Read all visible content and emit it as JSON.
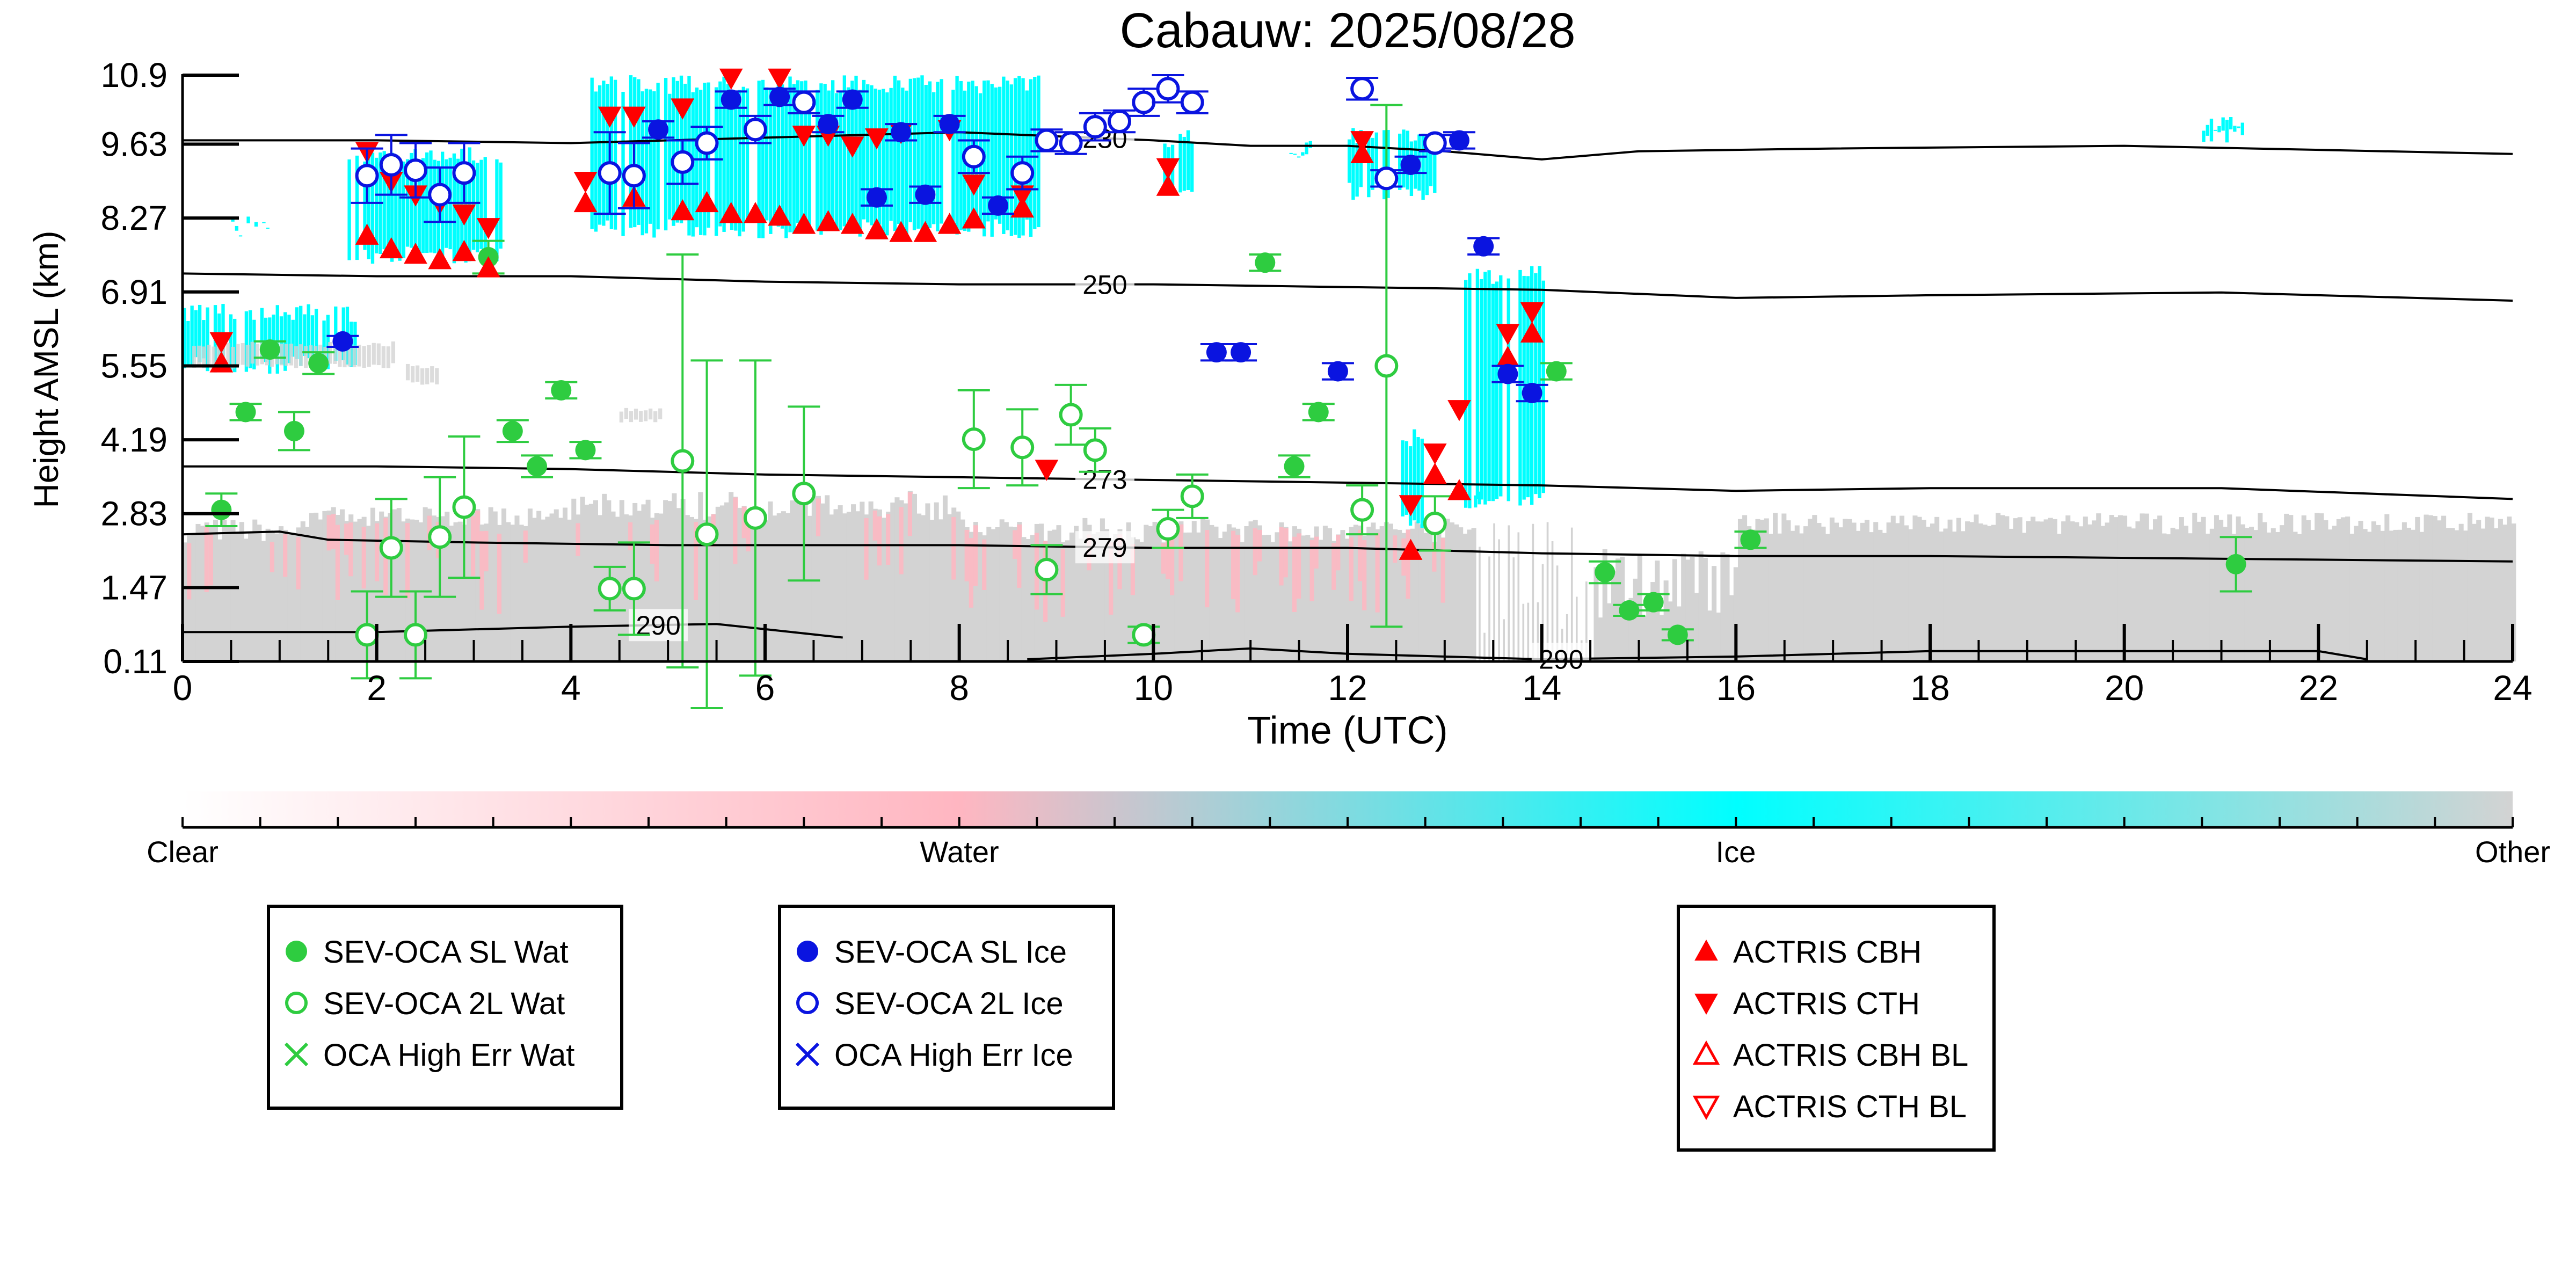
{
  "chart_data": {
    "type": "scatter",
    "title": "Cabauw: 2025/08/28",
    "xlabel": "Time (UTC)",
    "ylabel": "Height AMSL (km)",
    "xlim": [
      0,
      24
    ],
    "ylim": [
      0.11,
      10.9
    ],
    "xticks": [
      "0",
      "2",
      "4",
      "6",
      "8",
      "10",
      "12",
      "14",
      "16",
      "18",
      "20",
      "22",
      "24"
    ],
    "yticks": [
      "0.11",
      "1.47",
      "2.83",
      "4.19",
      "5.55",
      "6.91",
      "8.27",
      "9.63",
      "10.9"
    ],
    "grid": false,
    "colors": {
      "clear": "#ffffff",
      "water": "#ffb6c1",
      "ice": "#00ffff",
      "other": "#d3d3d3",
      "sev_wat": "#2ecc40",
      "sev_ice": "#0a14e0",
      "actris": "#ff0000",
      "contour": "#000000"
    },
    "colorbar": {
      "labels": [
        "Clear",
        "Water",
        "Ice",
        "Other"
      ]
    },
    "legends": [
      {
        "placement": "bottom-left",
        "entries": [
          {
            "label": "SEV-OCA SL Wat",
            "marker": "filled-circle",
            "color": "#2ecc40"
          },
          {
            "label": "SEV-OCA 2L Wat",
            "marker": "open-circle",
            "color": "#2ecc40"
          },
          {
            "label": "OCA High Err Wat",
            "marker": "x",
            "color": "#2ecc40"
          }
        ]
      },
      {
        "placement": "bottom-center-left",
        "entries": [
          {
            "label": "SEV-OCA SL Ice",
            "marker": "filled-circle",
            "color": "#0a14e0"
          },
          {
            "label": "SEV-OCA 2L Ice",
            "marker": "open-circle",
            "color": "#0a14e0"
          },
          {
            "label": "OCA High Err Ice",
            "marker": "x",
            "color": "#0a14e0"
          }
        ]
      },
      {
        "placement": "bottom-center-right",
        "entries": [
          {
            "label": "ACTRIS CBH",
            "marker": "triangle-up-filled",
            "color": "#ff0000"
          },
          {
            "label": "ACTRIS CTH",
            "marker": "triangle-down-filled",
            "color": "#ff0000"
          },
          {
            "label": "ACTRIS CBH BL",
            "marker": "triangle-up-open",
            "color": "#ff0000"
          },
          {
            "label": "ACTRIS CTH BL",
            "marker": "triangle-down-open",
            "color": "#ff0000"
          }
        ]
      }
    ],
    "isotherms": [
      {
        "label": "230",
        "label_x": 9.5,
        "points": [
          [
            0,
            9.7
          ],
          [
            2,
            9.7
          ],
          [
            4,
            9.65
          ],
          [
            6,
            9.75
          ],
          [
            8,
            9.85
          ],
          [
            10,
            9.7
          ],
          [
            11,
            9.6
          ],
          [
            12,
            9.6
          ],
          [
            13,
            9.5
          ],
          [
            14,
            9.35
          ],
          [
            15,
            9.5
          ],
          [
            17,
            9.55
          ],
          [
            20,
            9.6
          ],
          [
            24,
            9.45
          ]
        ]
      },
      {
        "label": "250",
        "label_x": 9.5,
        "points": [
          [
            0,
            7.25
          ],
          [
            2,
            7.2
          ],
          [
            4,
            7.2
          ],
          [
            6,
            7.1
          ],
          [
            8,
            7.05
          ],
          [
            10,
            7.05
          ],
          [
            12,
            7.0
          ],
          [
            14,
            6.95
          ],
          [
            16,
            6.8
          ],
          [
            18,
            6.85
          ],
          [
            21,
            6.9
          ],
          [
            24,
            6.75
          ]
        ]
      },
      {
        "label": "273",
        "label_x": 9.5,
        "points": [
          [
            0,
            3.7
          ],
          [
            2,
            3.7
          ],
          [
            4,
            3.65
          ],
          [
            6,
            3.55
          ],
          [
            8,
            3.5
          ],
          [
            10,
            3.45
          ],
          [
            12,
            3.4
          ],
          [
            14,
            3.35
          ],
          [
            16,
            3.25
          ],
          [
            18,
            3.3
          ],
          [
            21,
            3.3
          ],
          [
            24,
            3.1
          ]
        ]
      },
      {
        "label": "279",
        "label_x": 9.5,
        "points": [
          [
            0,
            2.45
          ],
          [
            1,
            2.5
          ],
          [
            1.5,
            2.35
          ],
          [
            3,
            2.3
          ],
          [
            5,
            2.25
          ],
          [
            8,
            2.25
          ],
          [
            10,
            2.2
          ],
          [
            12,
            2.2
          ],
          [
            14,
            2.1
          ],
          [
            16,
            2.05
          ],
          [
            18,
            2.05
          ],
          [
            21,
            2.0
          ],
          [
            24,
            1.95
          ]
        ]
      },
      {
        "label": "290",
        "label_x": 4.9,
        "points": [
          [
            0,
            0.65
          ],
          [
            2,
            0.65
          ],
          [
            4,
            0.75
          ],
          [
            5.5,
            0.8
          ],
          [
            6.8,
            0.55
          ]
        ]
      },
      {
        "label": "290",
        "label_x": 14.2,
        "points": [
          [
            8.7,
            0.15
          ],
          [
            10,
            0.25
          ],
          [
            11,
            0.35
          ],
          [
            12,
            0.25
          ],
          [
            13,
            0.2
          ],
          [
            14,
            0.15
          ],
          [
            16,
            0.2
          ],
          [
            18,
            0.3
          ],
          [
            20,
            0.3
          ],
          [
            22,
            0.3
          ],
          [
            22.5,
            0.15
          ]
        ]
      }
    ],
    "sev_sl_wat": [
      {
        "x": 0.4,
        "y": 2.9,
        "err": 0.3
      },
      {
        "x": 0.65,
        "y": 4.7,
        "err": 0.15
      },
      {
        "x": 0.9,
        "y": 5.85,
        "err": 0.15
      },
      {
        "x": 1.15,
        "y": 4.35,
        "err": 0.35
      },
      {
        "x": 1.4,
        "y": 5.6,
        "err": 0.2
      },
      {
        "x": 3.15,
        "y": 7.55,
        "err": 0.3
      },
      {
        "x": 3.4,
        "y": 4.35,
        "err": 0.2
      },
      {
        "x": 3.65,
        "y": 3.7,
        "err": 0.2
      },
      {
        "x": 3.9,
        "y": 5.1,
        "err": 0.15
      },
      {
        "x": 4.15,
        "y": 4.0,
        "err": 0.15
      },
      {
        "x": 11.15,
        "y": 7.45,
        "err": 0.15
      },
      {
        "x": 11.45,
        "y": 3.7,
        "err": 0.2
      },
      {
        "x": 11.7,
        "y": 4.7,
        "err": 0.15
      },
      {
        "x": 14.15,
        "y": 5.45,
        "err": 0.15
      },
      {
        "x": 14.65,
        "y": 1.75,
        "err": 0.2
      },
      {
        "x": 14.9,
        "y": 1.05,
        "err": 0.1
      },
      {
        "x": 15.15,
        "y": 1.2,
        "err": 0.15
      },
      {
        "x": 15.4,
        "y": 0.6,
        "err": 0.1
      },
      {
        "x": 16.15,
        "y": 2.35,
        "err": 0.15
      },
      {
        "x": 21.15,
        "y": 1.9,
        "err": 0.5
      }
    ],
    "sev_2l_wat": [
      {
        "x": 1.9,
        "y": 0.6,
        "err": 0.8
      },
      {
        "x": 2.15,
        "y": 2.2,
        "err": 0.9
      },
      {
        "x": 2.4,
        "y": 0.6,
        "err": 0.8
      },
      {
        "x": 2.65,
        "y": 2.4,
        "err": 1.1
      },
      {
        "x": 2.9,
        "y": 2.95,
        "err": 1.3
      },
      {
        "x": 4.4,
        "y": 1.45,
        "err": 0.4
      },
      {
        "x": 4.65,
        "y": 1.45,
        "err": 0.85
      },
      {
        "x": 5.15,
        "y": 3.8,
        "err": 3.8
      },
      {
        "x": 5.4,
        "y": 2.45,
        "err": 3.2
      },
      {
        "x": 5.9,
        "y": 2.75,
        "err": 2.9
      },
      {
        "x": 6.4,
        "y": 3.2,
        "err": 1.6
      },
      {
        "x": 8.15,
        "y": 4.2,
        "err": 0.9
      },
      {
        "x": 8.65,
        "y": 4.05,
        "err": 0.7
      },
      {
        "x": 8.9,
        "y": 1.8,
        "err": 0.45
      },
      {
        "x": 9.15,
        "y": 4.65,
        "err": 0.55
      },
      {
        "x": 9.4,
        "y": 4.0,
        "err": 0.4
      },
      {
        "x": 9.9,
        "y": 0.6,
        "err": 0.15
      },
      {
        "x": 10.15,
        "y": 2.55,
        "err": 0.35
      },
      {
        "x": 10.4,
        "y": 3.15,
        "err": 0.4
      },
      {
        "x": 12.15,
        "y": 2.9,
        "err": 0.45
      },
      {
        "x": 12.4,
        "y": 5.55,
        "err": 4.8
      },
      {
        "x": 12.9,
        "y": 2.65,
        "err": 0.5
      }
    ],
    "sev_sl_ice": [
      {
        "x": 1.65,
        "y": 6.0,
        "err": 0.1
      },
      {
        "x": 4.9,
        "y": 9.9,
        "err": 0.15
      },
      {
        "x": 5.65,
        "y": 10.45,
        "err": 0.15
      },
      {
        "x": 6.15,
        "y": 10.5,
        "err": 0.15
      },
      {
        "x": 6.65,
        "y": 10.0,
        "err": 0.15
      },
      {
        "x": 6.9,
        "y": 10.45,
        "err": 0.15
      },
      {
        "x": 7.15,
        "y": 8.65,
        "err": 0.15
      },
      {
        "x": 7.4,
        "y": 9.85,
        "err": 0.15
      },
      {
        "x": 7.65,
        "y": 8.7,
        "err": 0.15
      },
      {
        "x": 7.9,
        "y": 10.0,
        "err": 0.15
      },
      {
        "x": 8.4,
        "y": 8.5,
        "err": 0.15
      },
      {
        "x": 10.65,
        "y": 5.8,
        "err": 0.15
      },
      {
        "x": 10.9,
        "y": 5.8,
        "err": 0.15
      },
      {
        "x": 11.9,
        "y": 5.45,
        "err": 0.15
      },
      {
        "x": 12.65,
        "y": 9.25,
        "err": 0.15
      },
      {
        "x": 13.15,
        "y": 9.7,
        "err": 0.15
      },
      {
        "x": 13.4,
        "y": 7.75,
        "err": 0.15
      },
      {
        "x": 13.65,
        "y": 5.4,
        "err": 0.15
      },
      {
        "x": 13.9,
        "y": 5.05,
        "err": 0.15
      }
    ],
    "sev_2l_ice": [
      {
        "x": 1.9,
        "y": 9.05,
        "err": 0.5
      },
      {
        "x": 2.15,
        "y": 9.25,
        "err": 0.55
      },
      {
        "x": 2.4,
        "y": 9.15,
        "err": 0.5
      },
      {
        "x": 2.65,
        "y": 8.7,
        "err": 0.5
      },
      {
        "x": 2.9,
        "y": 9.1,
        "err": 0.55
      },
      {
        "x": 4.4,
        "y": 9.1,
        "err": 0.75
      },
      {
        "x": 4.65,
        "y": 9.05,
        "err": 0.6
      },
      {
        "x": 5.15,
        "y": 9.3,
        "err": 0.4
      },
      {
        "x": 5.4,
        "y": 9.65,
        "err": 0.3
      },
      {
        "x": 5.9,
        "y": 9.9,
        "err": 0.25
      },
      {
        "x": 6.4,
        "y": 10.4,
        "err": 0.2
      },
      {
        "x": 8.15,
        "y": 9.4,
        "err": 0.3
      },
      {
        "x": 8.65,
        "y": 9.1,
        "err": 0.3
      },
      {
        "x": 8.9,
        "y": 9.7,
        "err": 0.2
      },
      {
        "x": 9.15,
        "y": 9.65,
        "err": 0.2
      },
      {
        "x": 9.4,
        "y": 9.95,
        "err": 0.25
      },
      {
        "x": 9.65,
        "y": 10.05,
        "err": 0.2
      },
      {
        "x": 9.9,
        "y": 10.4,
        "err": 0.25
      },
      {
        "x": 10.15,
        "y": 10.65,
        "err": 0.25
      },
      {
        "x": 10.4,
        "y": 10.4,
        "err": 0.2
      },
      {
        "x": 12.15,
        "y": 10.65,
        "err": 0.2
      },
      {
        "x": 12.4,
        "y": 9.0,
        "err": 0.15
      },
      {
        "x": 12.9,
        "y": 9.65,
        "err": 0.15
      }
    ],
    "actris_cbh": [
      {
        "x": 0.4,
        "y": 5.6
      },
      {
        "x": 1.9,
        "y": 7.95
      },
      {
        "x": 2.15,
        "y": 7.7
      },
      {
        "x": 2.4,
        "y": 7.6
      },
      {
        "x": 2.65,
        "y": 7.5
      },
      {
        "x": 2.9,
        "y": 7.65
      },
      {
        "x": 3.15,
        "y": 7.35
      },
      {
        "x": 4.15,
        "y": 8.55
      },
      {
        "x": 4.65,
        "y": 8.65
      },
      {
        "x": 5.15,
        "y": 8.4
      },
      {
        "x": 5.4,
        "y": 8.55
      },
      {
        "x": 5.65,
        "y": 8.35
      },
      {
        "x": 5.9,
        "y": 8.35
      },
      {
        "x": 6.15,
        "y": 8.3
      },
      {
        "x": 6.4,
        "y": 8.15
      },
      {
        "x": 6.65,
        "y": 8.2
      },
      {
        "x": 6.9,
        "y": 8.15
      },
      {
        "x": 7.15,
        "y": 8.05
      },
      {
        "x": 7.4,
        "y": 8.0
      },
      {
        "x": 7.65,
        "y": 8.0
      },
      {
        "x": 7.9,
        "y": 8.15
      },
      {
        "x": 8.15,
        "y": 8.25
      },
      {
        "x": 8.65,
        "y": 8.45
      },
      {
        "x": 10.15,
        "y": 8.85
      },
      {
        "x": 12.15,
        "y": 9.45
      },
      {
        "x": 12.65,
        "y": 2.15
      },
      {
        "x": 12.9,
        "y": 3.55
      },
      {
        "x": 13.15,
        "y": 3.25
      },
      {
        "x": 13.65,
        "y": 5.7
      },
      {
        "x": 13.9,
        "y": 6.15
      }
    ],
    "actris_cth": [
      {
        "x": 0.4,
        "y": 6.0
      },
      {
        "x": 1.9,
        "y": 9.5
      },
      {
        "x": 2.15,
        "y": 8.95
      },
      {
        "x": 2.4,
        "y": 8.7
      },
      {
        "x": 2.65,
        "y": 8.55
      },
      {
        "x": 2.9,
        "y": 8.35
      },
      {
        "x": 3.15,
        "y": 8.1
      },
      {
        "x": 4.15,
        "y": 8.95
      },
      {
        "x": 4.4,
        "y": 10.15
      },
      {
        "x": 4.65,
        "y": 10.15
      },
      {
        "x": 5.15,
        "y": 10.3
      },
      {
        "x": 5.65,
        "y": 10.85
      },
      {
        "x": 6.15,
        "y": 10.85
      },
      {
        "x": 6.4,
        "y": 9.8
      },
      {
        "x": 6.65,
        "y": 9.8
      },
      {
        "x": 6.9,
        "y": 9.6
      },
      {
        "x": 7.15,
        "y": 9.75
      },
      {
        "x": 7.4,
        "y": 9.85
      },
      {
        "x": 7.9,
        "y": 9.9
      },
      {
        "x": 8.15,
        "y": 8.9
      },
      {
        "x": 8.65,
        "y": 8.7
      },
      {
        "x": 8.9,
        "y": 3.65
      },
      {
        "x": 10.15,
        "y": 9.2
      },
      {
        "x": 12.15,
        "y": 9.7
      },
      {
        "x": 12.65,
        "y": 3.0
      },
      {
        "x": 12.9,
        "y": 3.95
      },
      {
        "x": 13.15,
        "y": 4.75
      },
      {
        "x": 13.65,
        "y": 6.15
      },
      {
        "x": 13.9,
        "y": 6.55
      }
    ],
    "actris_cbh_bl": [],
    "actris_cth_bl": []
  }
}
